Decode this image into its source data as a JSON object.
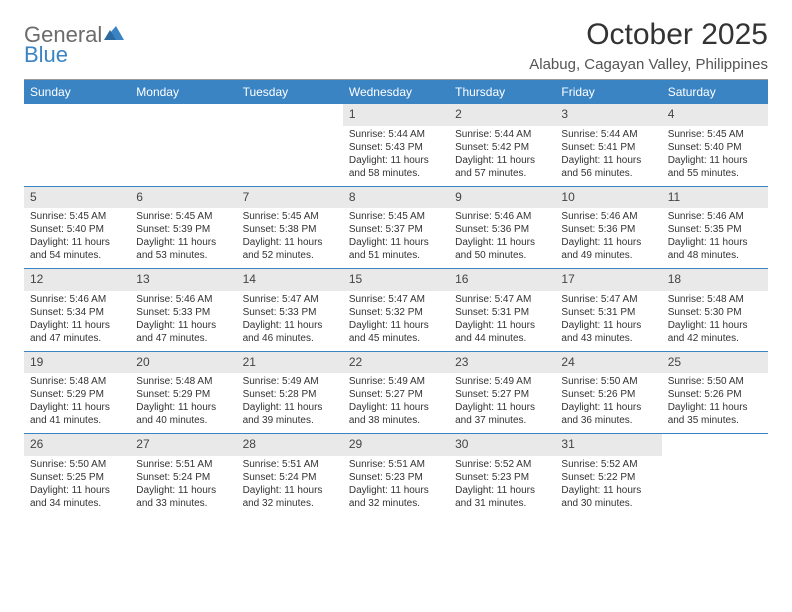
{
  "brand": {
    "name_gray": "General",
    "name_blue": "Blue"
  },
  "title": "October 2025",
  "location": "Alabug, Cagayan Valley, Philippines",
  "colors": {
    "accent": "#3a84c4",
    "header_text": "#ffffff",
    "daynum_bg": "#e9e9e9",
    "rule": "#3a84c4",
    "body_text": "#333333",
    "logo_gray": "#6b6b6b"
  },
  "day_names": [
    "Sunday",
    "Monday",
    "Tuesday",
    "Wednesday",
    "Thursday",
    "Friday",
    "Saturday"
  ],
  "weeks": [
    [
      {
        "n": "",
        "lines": []
      },
      {
        "n": "",
        "lines": []
      },
      {
        "n": "",
        "lines": []
      },
      {
        "n": "1",
        "lines": [
          "Sunrise: 5:44 AM",
          "Sunset: 5:43 PM",
          "Daylight: 11 hours and 58 minutes."
        ]
      },
      {
        "n": "2",
        "lines": [
          "Sunrise: 5:44 AM",
          "Sunset: 5:42 PM",
          "Daylight: 11 hours and 57 minutes."
        ]
      },
      {
        "n": "3",
        "lines": [
          "Sunrise: 5:44 AM",
          "Sunset: 5:41 PM",
          "Daylight: 11 hours and 56 minutes."
        ]
      },
      {
        "n": "4",
        "lines": [
          "Sunrise: 5:45 AM",
          "Sunset: 5:40 PM",
          "Daylight: 11 hours and 55 minutes."
        ]
      }
    ],
    [
      {
        "n": "5",
        "lines": [
          "Sunrise: 5:45 AM",
          "Sunset: 5:40 PM",
          "Daylight: 11 hours and 54 minutes."
        ]
      },
      {
        "n": "6",
        "lines": [
          "Sunrise: 5:45 AM",
          "Sunset: 5:39 PM",
          "Daylight: 11 hours and 53 minutes."
        ]
      },
      {
        "n": "7",
        "lines": [
          "Sunrise: 5:45 AM",
          "Sunset: 5:38 PM",
          "Daylight: 11 hours and 52 minutes."
        ]
      },
      {
        "n": "8",
        "lines": [
          "Sunrise: 5:45 AM",
          "Sunset: 5:37 PM",
          "Daylight: 11 hours and 51 minutes."
        ]
      },
      {
        "n": "9",
        "lines": [
          "Sunrise: 5:46 AM",
          "Sunset: 5:36 PM",
          "Daylight: 11 hours and 50 minutes."
        ]
      },
      {
        "n": "10",
        "lines": [
          "Sunrise: 5:46 AM",
          "Sunset: 5:36 PM",
          "Daylight: 11 hours and 49 minutes."
        ]
      },
      {
        "n": "11",
        "lines": [
          "Sunrise: 5:46 AM",
          "Sunset: 5:35 PM",
          "Daylight: 11 hours and 48 minutes."
        ]
      }
    ],
    [
      {
        "n": "12",
        "lines": [
          "Sunrise: 5:46 AM",
          "Sunset: 5:34 PM",
          "Daylight: 11 hours and 47 minutes."
        ]
      },
      {
        "n": "13",
        "lines": [
          "Sunrise: 5:46 AM",
          "Sunset: 5:33 PM",
          "Daylight: 11 hours and 47 minutes."
        ]
      },
      {
        "n": "14",
        "lines": [
          "Sunrise: 5:47 AM",
          "Sunset: 5:33 PM",
          "Daylight: 11 hours and 46 minutes."
        ]
      },
      {
        "n": "15",
        "lines": [
          "Sunrise: 5:47 AM",
          "Sunset: 5:32 PM",
          "Daylight: 11 hours and 45 minutes."
        ]
      },
      {
        "n": "16",
        "lines": [
          "Sunrise: 5:47 AM",
          "Sunset: 5:31 PM",
          "Daylight: 11 hours and 44 minutes."
        ]
      },
      {
        "n": "17",
        "lines": [
          "Sunrise: 5:47 AM",
          "Sunset: 5:31 PM",
          "Daylight: 11 hours and 43 minutes."
        ]
      },
      {
        "n": "18",
        "lines": [
          "Sunrise: 5:48 AM",
          "Sunset: 5:30 PM",
          "Daylight: 11 hours and 42 minutes."
        ]
      }
    ],
    [
      {
        "n": "19",
        "lines": [
          "Sunrise: 5:48 AM",
          "Sunset: 5:29 PM",
          "Daylight: 11 hours and 41 minutes."
        ]
      },
      {
        "n": "20",
        "lines": [
          "Sunrise: 5:48 AM",
          "Sunset: 5:29 PM",
          "Daylight: 11 hours and 40 minutes."
        ]
      },
      {
        "n": "21",
        "lines": [
          "Sunrise: 5:49 AM",
          "Sunset: 5:28 PM",
          "Daylight: 11 hours and 39 minutes."
        ]
      },
      {
        "n": "22",
        "lines": [
          "Sunrise: 5:49 AM",
          "Sunset: 5:27 PM",
          "Daylight: 11 hours and 38 minutes."
        ]
      },
      {
        "n": "23",
        "lines": [
          "Sunrise: 5:49 AM",
          "Sunset: 5:27 PM",
          "Daylight: 11 hours and 37 minutes."
        ]
      },
      {
        "n": "24",
        "lines": [
          "Sunrise: 5:50 AM",
          "Sunset: 5:26 PM",
          "Daylight: 11 hours and 36 minutes."
        ]
      },
      {
        "n": "25",
        "lines": [
          "Sunrise: 5:50 AM",
          "Sunset: 5:26 PM",
          "Daylight: 11 hours and 35 minutes."
        ]
      }
    ],
    [
      {
        "n": "26",
        "lines": [
          "Sunrise: 5:50 AM",
          "Sunset: 5:25 PM",
          "Daylight: 11 hours and 34 minutes."
        ]
      },
      {
        "n": "27",
        "lines": [
          "Sunrise: 5:51 AM",
          "Sunset: 5:24 PM",
          "Daylight: 11 hours and 33 minutes."
        ]
      },
      {
        "n": "28",
        "lines": [
          "Sunrise: 5:51 AM",
          "Sunset: 5:24 PM",
          "Daylight: 11 hours and 32 minutes."
        ]
      },
      {
        "n": "29",
        "lines": [
          "Sunrise: 5:51 AM",
          "Sunset: 5:23 PM",
          "Daylight: 11 hours and 32 minutes."
        ]
      },
      {
        "n": "30",
        "lines": [
          "Sunrise: 5:52 AM",
          "Sunset: 5:23 PM",
          "Daylight: 11 hours and 31 minutes."
        ]
      },
      {
        "n": "31",
        "lines": [
          "Sunrise: 5:52 AM",
          "Sunset: 5:22 PM",
          "Daylight: 11 hours and 30 minutes."
        ]
      },
      {
        "n": "",
        "lines": []
      }
    ]
  ]
}
